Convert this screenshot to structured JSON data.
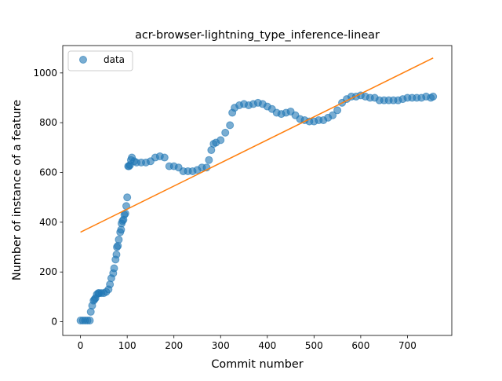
{
  "chart_data": {
    "type": "scatter",
    "title": "acr-browser-lightning_type_inference-linear",
    "xlabel": "Commit number",
    "ylabel": "Number of instance of a feature",
    "xlim": [
      -38,
      795
    ],
    "ylim": [
      -55,
      1110
    ],
    "xticks": [
      0,
      100,
      200,
      300,
      400,
      500,
      600,
      700
    ],
    "yticks": [
      0,
      200,
      400,
      600,
      800,
      1000
    ],
    "grid": false,
    "legend": {
      "placement": "top-left",
      "entries": [
        "data"
      ]
    },
    "series": [
      {
        "name": "data",
        "kind": "scatter",
        "color": "#1f77b4",
        "x": [
          0,
          5,
          10,
          15,
          20,
          22,
          25,
          28,
          30,
          32,
          35,
          38,
          40,
          45,
          50,
          55,
          60,
          63,
          66,
          70,
          72,
          75,
          77,
          78,
          80,
          82,
          85,
          87,
          88,
          90,
          92,
          94,
          96,
          98,
          100,
          102,
          104,
          106,
          108,
          110,
          115,
          120,
          130,
          140,
          150,
          160,
          170,
          180,
          190,
          200,
          210,
          220,
          230,
          240,
          250,
          260,
          270,
          275,
          280,
          285,
          290,
          300,
          310,
          320,
          325,
          330,
          340,
          350,
          360,
          370,
          380,
          390,
          400,
          410,
          420,
          430,
          440,
          450,
          460,
          470,
          480,
          490,
          500,
          510,
          520,
          530,
          540,
          550,
          560,
          570,
          580,
          590,
          600,
          610,
          620,
          630,
          640,
          650,
          660,
          670,
          680,
          690,
          700,
          710,
          720,
          730,
          740,
          750,
          755
        ],
        "y": [
          5,
          5,
          5,
          5,
          5,
          40,
          65,
          85,
          90,
          95,
          110,
          115,
          115,
          115,
          115,
          120,
          130,
          150,
          175,
          195,
          215,
          250,
          270,
          300,
          305,
          330,
          360,
          370,
          395,
          405,
          410,
          430,
          435,
          465,
          500,
          625,
          625,
          630,
          650,
          660,
          645,
          640,
          640,
          640,
          645,
          660,
          665,
          660,
          625,
          625,
          620,
          605,
          605,
          605,
          610,
          620,
          620,
          650,
          690,
          715,
          720,
          730,
          760,
          790,
          840,
          860,
          870,
          875,
          870,
          875,
          880,
          875,
          865,
          855,
          840,
          835,
          840,
          845,
          830,
          815,
          810,
          805,
          805,
          810,
          810,
          820,
          830,
          850,
          880,
          895,
          905,
          905,
          910,
          905,
          900,
          900,
          890,
          890,
          890,
          890,
          890,
          895,
          900,
          900,
          900,
          900,
          905,
          900,
          905
        ]
      },
      {
        "name": "",
        "kind": "line",
        "color": "#ff7f0e",
        "x": [
          0,
          755
        ],
        "y": [
          360,
          1060
        ]
      }
    ]
  }
}
